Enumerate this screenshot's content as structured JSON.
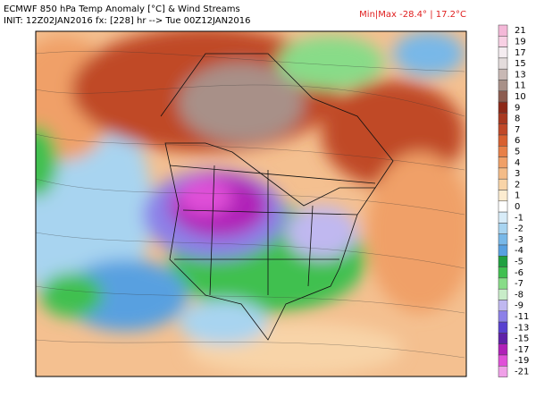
{
  "header": {
    "title": "ECMWF 850 hPa Temp Anomaly [°C] & Wind Streams",
    "init": "INIT: 12Z02JAN2016 fx: [228] hr --> Tue 00Z12JAN2016",
    "minmax": "Min|Max -28.4° | 17.2°C"
  },
  "colorbar": {
    "levels": [
      {
        "value": 21,
        "color": "#f4b8d8"
      },
      {
        "value": 19,
        "color": "#f8d0e4"
      },
      {
        "value": 17,
        "color": "#f4ecf0"
      },
      {
        "value": 15,
        "color": "#e4dcdc"
      },
      {
        "value": 13,
        "color": "#c8b8b4"
      },
      {
        "value": 11,
        "color": "#a89088"
      },
      {
        "value": 10,
        "color": "#8c5c50"
      },
      {
        "value": 9,
        "color": "#8c2818"
      },
      {
        "value": 8,
        "color": "#a83820"
      },
      {
        "value": 7,
        "color": "#c04828"
      },
      {
        "value": 6,
        "color": "#d86030"
      },
      {
        "value": 5,
        "color": "#e88048"
      },
      {
        "value": 4,
        "color": "#f0a068"
      },
      {
        "value": 3,
        "color": "#f4bc88"
      },
      {
        "value": 2,
        "color": "#f8d4a8"
      },
      {
        "value": 1,
        "color": "#fcecd0"
      },
      {
        "value": 0,
        "color": "#ffffff"
      },
      {
        "value": -1,
        "color": "#d8ecf8"
      },
      {
        "value": -2,
        "color": "#a8d4f0"
      },
      {
        "value": -3,
        "color": "#78b8e8"
      },
      {
        "value": -4,
        "color": "#58a0e0"
      },
      {
        "value": -5,
        "color": "#20a040"
      },
      {
        "value": -6,
        "color": "#40c050"
      },
      {
        "value": -7,
        "color": "#88dc88"
      },
      {
        "value": -8,
        "color": "#c8ecc8"
      },
      {
        "value": -9,
        "color": "#c0b8f0"
      },
      {
        "value": -11,
        "color": "#8c80e8"
      },
      {
        "value": -13,
        "color": "#5840d0"
      },
      {
        "value": -15,
        "color": "#6020a8"
      },
      {
        "value": -17,
        "color": "#b020b8"
      },
      {
        "value": -19,
        "color": "#e050d8"
      },
      {
        "value": -21,
        "color": "#f0a0e8"
      }
    ]
  }
}
